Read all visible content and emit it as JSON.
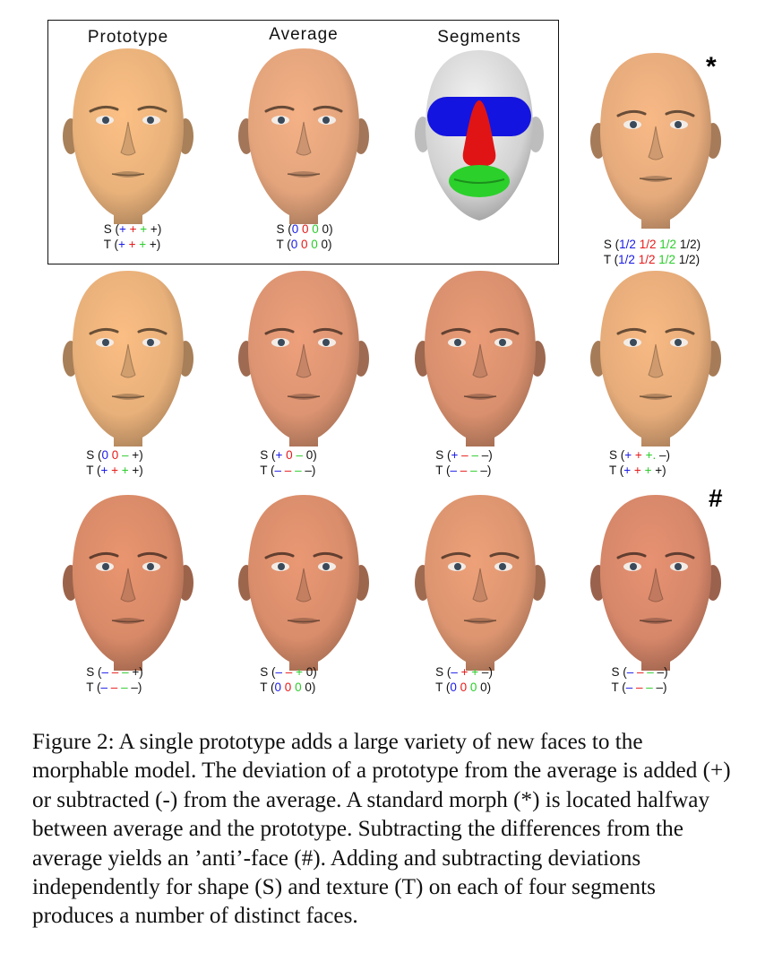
{
  "figure": {
    "panel_titles": [
      "Prototype",
      "Average",
      "Segments"
    ],
    "marks": {
      "standard_morph": "*",
      "anti_face": "#"
    },
    "segment_colors": {
      "eyes": "#1414e0",
      "nose": "#e01414",
      "mouth": "#2bd02b",
      "rest": "#dcdcdc"
    },
    "code_colors": [
      "#1a1ae6",
      "#e61a1a",
      "#2ccc2c",
      "#111111"
    ],
    "faces": [
      {
        "id": "prototype",
        "tone": "#e9b27b",
        "s": [
          "+",
          "+",
          "+",
          "+"
        ],
        "t": [
          "+",
          "+",
          "+",
          "+"
        ]
      },
      {
        "id": "average",
        "tone": "#e3a47c",
        "s": [
          "0",
          "0",
          "0",
          "0"
        ],
        "t": [
          "0",
          "0",
          "0",
          "0"
        ]
      },
      {
        "id": "standard-morph",
        "tone": "#e6ab7c",
        "s": [
          "1/2",
          "1/2",
          "1/2",
          "1/2"
        ],
        "t": [
          "1/2",
          "1/2",
          "1/2",
          "1/2"
        ]
      },
      {
        "id": "r2c1",
        "tone": "#e8b07a",
        "s": [
          "0",
          "0",
          "–",
          "+"
        ],
        "t": [
          "+",
          "+",
          "+",
          "+"
        ]
      },
      {
        "id": "r2c2",
        "tone": "#dc9472",
        "s": [
          "+",
          "0",
          "–",
          "0"
        ],
        "t": [
          "–",
          "–",
          "–",
          "–"
        ]
      },
      {
        "id": "r2c3",
        "tone": "#d9906e",
        "s": [
          "+",
          "–",
          "–",
          "–"
        ],
        "t": [
          "–",
          "–",
          "–",
          "–"
        ]
      },
      {
        "id": "r2c4",
        "tone": "#e6ac7a",
        "s": [
          "+",
          "+",
          "+.",
          "–"
        ],
        "t": [
          "+",
          "+",
          "+",
          "+"
        ]
      },
      {
        "id": "r3c1",
        "tone": "#d88a68",
        "s": [
          "–",
          "–",
          "–",
          "+"
        ],
        "t": [
          "–",
          "–",
          "–",
          "–"
        ]
      },
      {
        "id": "r3c2",
        "tone": "#d98d6b",
        "s": [
          "–",
          "–",
          "+",
          "0"
        ],
        "t": [
          "0",
          "0",
          "0",
          "0"
        ]
      },
      {
        "id": "r3c3",
        "tone": "#dc9570",
        "s": [
          "–",
          "+",
          "+",
          "–"
        ],
        "t": [
          "0",
          "0",
          "0",
          "0"
        ]
      },
      {
        "id": "anti-face",
        "tone": "#d6876a",
        "s": [
          "–",
          "–",
          "–",
          "–"
        ],
        "t": [
          "–",
          "–",
          "–",
          "–"
        ]
      }
    ]
  },
  "caption": "Figure 2: A single prototype adds a large variety of new faces to the morphable model. The deviation of a prototype from the average is added (+) or subtracted (-) from the average. A standard morph (*) is located halfway between average and the prototype. Subtracting the differences from the average yields an ’anti’-face (#). Adding and subtracting deviations independently for shape (S) and texture (T) on each of four segments produces a number of distinct faces."
}
